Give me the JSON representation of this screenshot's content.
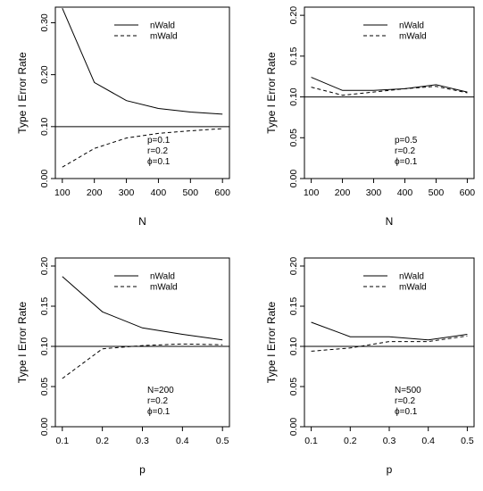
{
  "chart_data": [
    {
      "type": "line",
      "xlabel": "N",
      "ylabel": "Type I Error Rate",
      "x": [
        100,
        200,
        300,
        400,
        500,
        600
      ],
      "xticks": [
        "100",
        "200",
        "300",
        "400",
        "500",
        "600"
      ],
      "ylim": [
        0,
        0.33
      ],
      "yticks": [
        "0.00",
        "0.10",
        "0.20",
        "0.30"
      ],
      "reference_line": 0.1,
      "legend": "top-center",
      "annotations": [
        "p=0.1",
        "r=0.2",
        "ϕ=0.1"
      ],
      "series": [
        {
          "name": "nWald",
          "style": "solid",
          "values": [
            0.328,
            0.185,
            0.15,
            0.135,
            0.128,
            0.124
          ]
        },
        {
          "name": "mWald",
          "style": "dashed",
          "values": [
            0.022,
            0.058,
            0.078,
            0.087,
            0.092,
            0.096
          ]
        }
      ]
    },
    {
      "type": "line",
      "xlabel": "N",
      "ylabel": "Type I Error Rate",
      "x": [
        100,
        200,
        300,
        400,
        500,
        600
      ],
      "xticks": [
        "100",
        "200",
        "300",
        "400",
        "500",
        "600"
      ],
      "ylim": [
        0,
        0.21
      ],
      "yticks": [
        "0.00",
        "0.05",
        "0.10",
        "0.15",
        "0.20"
      ],
      "reference_line": 0.1,
      "legend": "top-center",
      "annotations": [
        "p=0.5",
        "r=0.2",
        "ϕ=0.1"
      ],
      "series": [
        {
          "name": "nWald",
          "style": "solid",
          "values": [
            0.124,
            0.108,
            0.108,
            0.11,
            0.115,
            0.106
          ]
        },
        {
          "name": "mWald",
          "style": "dashed",
          "values": [
            0.112,
            0.102,
            0.106,
            0.11,
            0.113,
            0.105
          ]
        }
      ]
    },
    {
      "type": "line",
      "xlabel": "p",
      "ylabel": "Type I Error Rate",
      "x": [
        0.1,
        0.2,
        0.3,
        0.4,
        0.5
      ],
      "xticks": [
        "0.1",
        "0.2",
        "0.3",
        "0.4",
        "0.5"
      ],
      "ylim": [
        0,
        0.21
      ],
      "yticks": [
        "0.00",
        "0.05",
        "0.10",
        "0.15",
        "0.20"
      ],
      "reference_line": 0.1,
      "legend": "top-center",
      "annotations": [
        "N=200",
        "r=0.2",
        "ϕ=0.1"
      ],
      "series": [
        {
          "name": "nWald",
          "style": "solid",
          "values": [
            0.187,
            0.143,
            0.123,
            0.115,
            0.108
          ]
        },
        {
          "name": "mWald",
          "style": "dashed",
          "values": [
            0.06,
            0.097,
            0.101,
            0.103,
            0.102
          ]
        }
      ]
    },
    {
      "type": "line",
      "xlabel": "p",
      "ylabel": "Type I Error Rate",
      "x": [
        0.1,
        0.2,
        0.3,
        0.4,
        0.5
      ],
      "xticks": [
        "0.1",
        "0.2",
        "0.3",
        "0.4",
        "0.5"
      ],
      "ylim": [
        0,
        0.21
      ],
      "yticks": [
        "0.00",
        "0.05",
        "0.10",
        "0.15",
        "0.20"
      ],
      "reference_line": 0.1,
      "legend": "top-center",
      "annotations": [
        "N=500",
        "r=0.2",
        "ϕ=0.1"
      ],
      "series": [
        {
          "name": "nWald",
          "style": "solid",
          "values": [
            0.13,
            0.112,
            0.112,
            0.108,
            0.115
          ]
        },
        {
          "name": "mWald",
          "style": "dashed",
          "values": [
            0.094,
            0.098,
            0.106,
            0.106,
            0.113
          ]
        }
      ]
    }
  ]
}
